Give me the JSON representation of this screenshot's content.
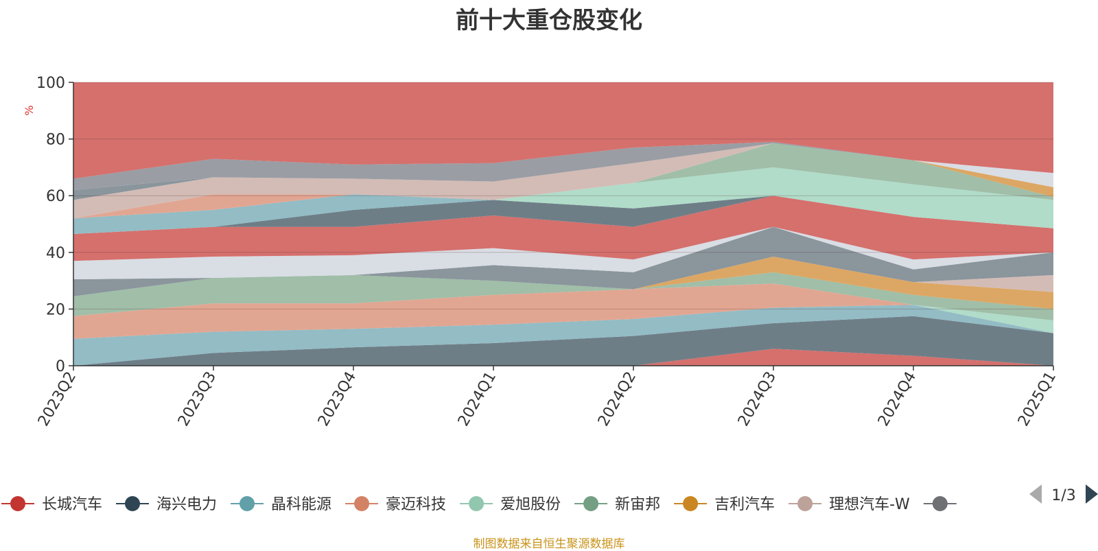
{
  "chart_data": {
    "type": "area",
    "title": "前十大重仓股变化",
    "ylabel": "%",
    "ylim": [
      0,
      100
    ],
    "yticks": [
      "0",
      "20",
      "40",
      "60",
      "80",
      "100"
    ],
    "categories": [
      "2023Q2",
      "2023Q3",
      "2023Q4",
      "2024Q1",
      "2024Q2",
      "2024Q3",
      "2024Q4",
      "2025Q1"
    ],
    "stacked_to": 100,
    "grid": true,
    "legend_position": "bottom",
    "layers": [
      {
        "color": "#d5706d",
        "values": [
          0,
          0,
          0,
          0,
          0,
          6,
          3.5,
          0
        ]
      },
      {
        "color": "#6e7e87",
        "values": [
          0,
          4.5,
          6.5,
          8,
          10.5,
          15,
          17.5,
          11.5
        ]
      },
      {
        "color": "#93bcc5",
        "values": [
          9.5,
          12,
          13,
          14.5,
          16.5,
          20.5,
          21.5,
          11.5
        ]
      },
      {
        "color": "#e1a692",
        "values": [
          17.5,
          22,
          22,
          25,
          27,
          29,
          21.5,
          11.5
        ]
      },
      {
        "color": "#b0dcc9",
        "values": [
          17.5,
          22,
          22,
          25,
          27,
          29,
          21.5,
          16
        ]
      },
      {
        "color": "#a0bea8",
        "values": [
          24.5,
          31,
          32,
          30,
          27,
          33,
          25,
          20
        ]
      },
      {
        "color": "#dca764",
        "values": [
          24.5,
          31,
          32,
          30,
          27,
          38.5,
          29.5,
          26
        ]
      },
      {
        "color": "#d3bcb6",
        "values": [
          24.5,
          31,
          32,
          30,
          27,
          38.5,
          29.5,
          32
        ]
      },
      {
        "color": "#8a959c",
        "values": [
          30.5,
          31,
          32,
          35.5,
          33,
          49,
          34,
          40
        ]
      },
      {
        "color": "#d9dde4",
        "values": [
          37,
          38.5,
          39,
          41.5,
          37.5,
          49,
          37.5,
          40
        ]
      },
      {
        "color": "#d5706d",
        "values": [
          46.5,
          49,
          49,
          53,
          49,
          60,
          52.5,
          48.5
        ]
      },
      {
        "color": "#6e7e87",
        "values": [
          46.5,
          49,
          55,
          58.5,
          55.5,
          60,
          52.5,
          48.5
        ]
      },
      {
        "color": "#93bcc5",
        "values": [
          52,
          55,
          60.5,
          58.5,
          55.5,
          60,
          52.5,
          48.5
        ]
      },
      {
        "color": "#e1a692",
        "values": [
          52,
          60.5,
          60.5,
          58.5,
          55.5,
          60,
          52.5,
          48.5
        ]
      },
      {
        "color": "#b0dcc9",
        "values": [
          52,
          60.5,
          60.5,
          58.5,
          64.5,
          70,
          64,
          58.5
        ]
      },
      {
        "color": "#a0bea8",
        "values": [
          52,
          60.5,
          60.5,
          58.5,
          64.5,
          78.5,
          72.5,
          59.5
        ]
      },
      {
        "color": "#dca764",
        "values": [
          52,
          60.5,
          60.5,
          58.5,
          64.5,
          78.5,
          72.5,
          63
        ]
      },
      {
        "color": "#d3bcb6",
        "values": [
          58.5,
          66.5,
          66,
          65,
          71.5,
          78.5,
          72.5,
          63
        ]
      },
      {
        "color": "#8a959c",
        "values": [
          62,
          66.5,
          66,
          65,
          71.5,
          78.5,
          72.5,
          63
        ]
      },
      {
        "color": "#9a9da4",
        "values": [
          66,
          73,
          71,
          71.5,
          77,
          79,
          72.5,
          63
        ]
      },
      {
        "color": "#d9dde4",
        "values": [
          66,
          73,
          71,
          71.5,
          77,
          79,
          72.5,
          68
        ]
      },
      {
        "color": "#d5706d",
        "values": [
          100,
          100,
          100,
          100,
          100,
          100,
          100,
          100
        ]
      }
    ],
    "legend": {
      "items": [
        {
          "name": "长城汽车",
          "color": "#c23531"
        },
        {
          "name": "海兴电力",
          "color": "#2f4554"
        },
        {
          "name": "晶科能源",
          "color": "#61a0a8"
        },
        {
          "name": "豪迈科技",
          "color": "#d48265"
        },
        {
          "name": "爱旭股份",
          "color": "#91c7ae"
        },
        {
          "name": "新宙邦",
          "color": "#749f83"
        },
        {
          "name": "吉利汽车",
          "color": "#ca8622"
        },
        {
          "name": "理想汽车-W",
          "color": "#bda29a"
        },
        {
          "name": "",
          "color": "#6e7074"
        }
      ],
      "page": "1/3"
    }
  },
  "footer": "制图数据来自恒生聚源数据库"
}
